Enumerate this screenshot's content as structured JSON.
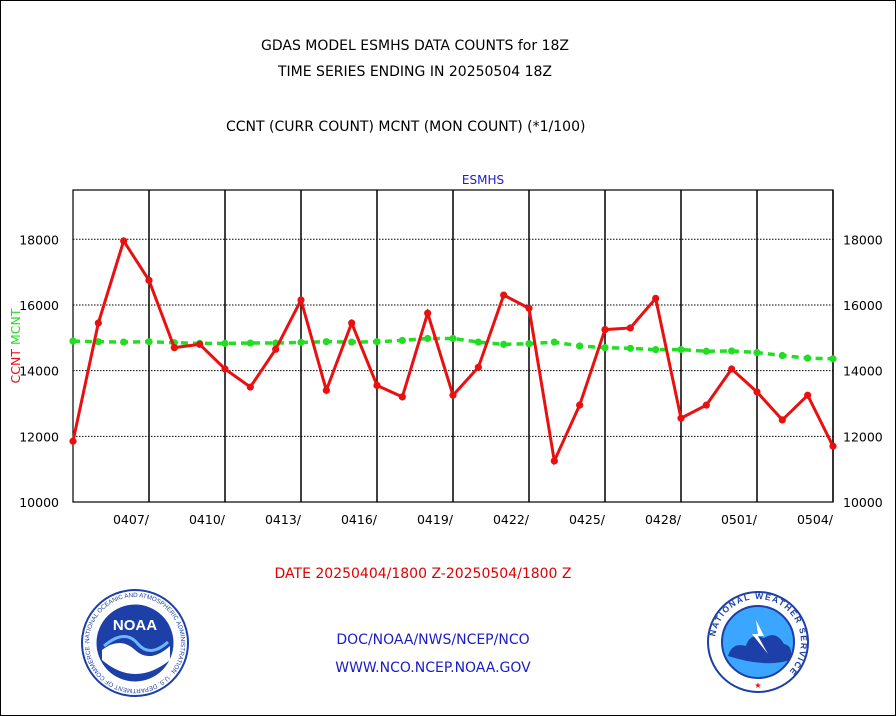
{
  "header": {
    "title_line1": "GDAS MODEL ESMHS DATA COUNTS for 18Z",
    "title_line2": "TIME SERIES ENDING IN 20250504 18Z",
    "legend_text": "CCNT (CURR COUNT) MCNT (MON COUNT) (*1/100)"
  },
  "footer": {
    "date_range": "DATE 20250404/1800 Z-20250504/1800 Z",
    "link1": "DOC/NOAA/NWS/NCEP/NCO",
    "link2": "WWW.NCO.NCEP.NOAA.GOV"
  },
  "logos": {
    "noaa_label": "NOAA",
    "noaa_ring_text": "NATIONAL OCEANIC AND ATMOSPHERIC ADMINISTRATION · U.S. DEPARTMENT OF COMMERCE ·",
    "nws_ring_text": "NATIONAL WEATHER SERVICE"
  },
  "colors": {
    "ccnt": "#e81010",
    "mcnt": "#22dd22",
    "ylabel_ccnt": "#e81010",
    "ylabel_mcnt": "#22dd22",
    "panel_title": "#1c1cc8"
  },
  "chart_data": {
    "type": "line",
    "title": "ESMHS",
    "ylabel_parts": [
      "CCNT",
      "MCNT"
    ],
    "ylim": [
      10000,
      19500
    ],
    "yticks": [
      10000,
      12000,
      14000,
      16000,
      18000
    ],
    "grid": true,
    "x_start": "20250404/1800",
    "x_end": "20250504/1800",
    "xtick_labels": [
      "0407/",
      "0410/",
      "0413/",
      "0416/",
      "0419/",
      "0422/",
      "0425/",
      "0428/",
      "0501/",
      "0504/"
    ],
    "xtick_days": [
      3,
      6,
      9,
      12,
      15,
      18,
      21,
      24,
      27,
      30
    ],
    "series": [
      {
        "name": "CCNT",
        "values": [
          11850,
          15450,
          17950,
          16750,
          14700,
          14800,
          14050,
          13500,
          14650,
          16150,
          13400,
          15450,
          13550,
          13200,
          15750,
          13250,
          14100,
          16300,
          15900,
          11250,
          12950,
          15250,
          15300,
          16200,
          12550,
          12950,
          14050,
          13350,
          12500,
          13250,
          11700
        ]
      },
      {
        "name": "MCNT",
        "values": [
          14900,
          14880,
          14870,
          14880,
          14850,
          14830,
          14830,
          14840,
          14840,
          14860,
          14880,
          14870,
          14880,
          14920,
          14980,
          14980,
          14870,
          14800,
          14820,
          14870,
          14750,
          14700,
          14680,
          14640,
          14640,
          14590,
          14600,
          14550,
          14460,
          14380,
          14360
        ]
      }
    ]
  }
}
